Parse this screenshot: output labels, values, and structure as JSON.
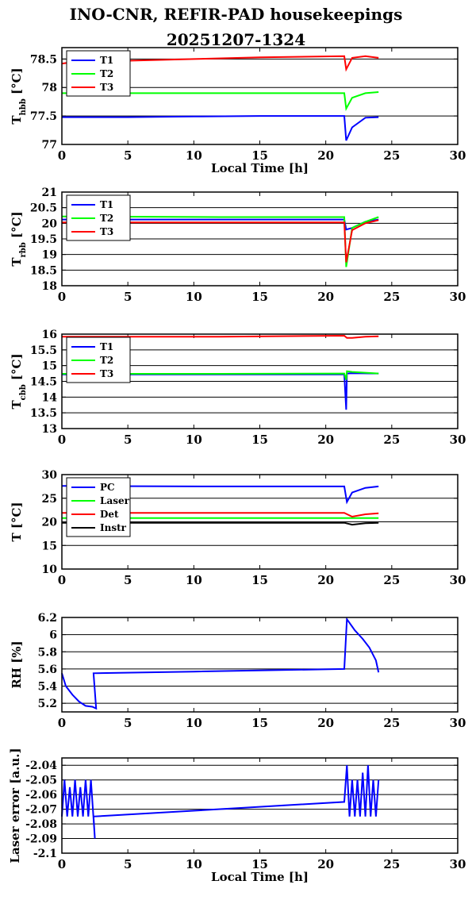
{
  "title_line1": "INO-CNR, REFIR-PAD housekeepings",
  "title_line2": "20251207-1324",
  "chart_data": [
    {
      "type": "line",
      "ylabel": "T_hbb [°C]",
      "xlabel": "Local Time [h]",
      "xlim": [
        0,
        30
      ],
      "ylim": [
        77,
        78.7
      ],
      "xticks": [
        0,
        5,
        10,
        15,
        20,
        25,
        30
      ],
      "yticks": [
        77,
        77.5,
        78,
        78.5
      ],
      "ytick_labels": [
        "77",
        "77.5",
        "78",
        "78.5"
      ],
      "grid": "y",
      "legend": "top-left",
      "series": [
        {
          "name": "T1",
          "color": "#0000ff",
          "x": [
            0,
            1,
            2,
            5,
            10,
            15,
            21.4,
            21.55,
            22,
            23,
            24
          ],
          "y": [
            77.48,
            77.48,
            77.48,
            77.48,
            77.49,
            77.5,
            77.5,
            77.07,
            77.3,
            77.47,
            77.48
          ]
        },
        {
          "name": "T2",
          "color": "#00ff00",
          "x": [
            0,
            1,
            5,
            10,
            15,
            21.4,
            21.55,
            22,
            23,
            24
          ],
          "y": [
            77.9,
            77.9,
            77.9,
            77.9,
            77.9,
            77.9,
            77.63,
            77.82,
            77.9,
            77.92
          ]
        },
        {
          "name": "T3",
          "color": "#ff0000",
          "x": [
            0,
            1,
            5,
            10,
            15,
            21.4,
            21.55,
            22,
            23,
            24
          ],
          "y": [
            78.42,
            78.45,
            78.47,
            78.5,
            78.53,
            78.55,
            78.32,
            78.52,
            78.55,
            78.52
          ]
        }
      ]
    },
    {
      "type": "line",
      "ylabel": "T_rbb [°C]",
      "xlabel": "",
      "xlim": [
        0,
        30
      ],
      "ylim": [
        18,
        21
      ],
      "xticks": [
        0,
        5,
        10,
        15,
        20,
        25,
        30
      ],
      "yticks": [
        18,
        18.5,
        19,
        19.5,
        20,
        20.5,
        21
      ],
      "ytick_labels": [
        "18",
        "18.5",
        "19",
        "19.5",
        "20",
        "20.5",
        "21"
      ],
      "grid": "y",
      "legend": "top-left",
      "series": [
        {
          "name": "T1",
          "color": "#0000ff",
          "x": [
            0,
            12,
            21.4,
            21.55,
            22,
            23,
            24
          ],
          "y": [
            20.12,
            20.12,
            20.12,
            19.8,
            19.85,
            20.05,
            20.12
          ]
        },
        {
          "name": "T2",
          "color": "#00ff00",
          "x": [
            0,
            12,
            21.4,
            21.55,
            22,
            23,
            24
          ],
          "y": [
            20.22,
            20.2,
            20.2,
            18.6,
            19.85,
            20.05,
            20.2
          ]
        },
        {
          "name": "T3",
          "color": "#ff0000",
          "x": [
            0,
            12,
            21.4,
            21.55,
            22,
            23,
            24
          ],
          "y": [
            20.03,
            20.03,
            20.03,
            18.75,
            19.78,
            20.0,
            20.1
          ]
        }
      ]
    },
    {
      "type": "line",
      "ylabel": "T_cbb [°C]",
      "xlabel": "",
      "xlim": [
        0,
        30
      ],
      "ylim": [
        13,
        16
      ],
      "xticks": [
        0,
        5,
        10,
        15,
        20,
        25,
        30
      ],
      "yticks": [
        13,
        13.5,
        14,
        14.5,
        15,
        15.5,
        16
      ],
      "ytick_labels": [
        "13",
        "13.5",
        "14",
        "14.5",
        "15",
        "15.5",
        "16"
      ],
      "grid": "y",
      "legend": "top-left",
      "series": [
        {
          "name": "T1",
          "color": "#0000ff",
          "x": [
            0,
            12,
            21.4,
            21.55,
            21.6,
            22,
            24
          ],
          "y": [
            14.72,
            14.72,
            14.72,
            13.6,
            14.75,
            14.76,
            14.75
          ]
        },
        {
          "name": "T2",
          "color": "#00ff00",
          "x": [
            0,
            12,
            21.4,
            21.55,
            21.6,
            22,
            24
          ],
          "y": [
            14.74,
            14.74,
            14.75,
            14.55,
            14.82,
            14.8,
            14.75
          ]
        },
        {
          "name": "T3",
          "color": "#ff0000",
          "x": [
            0,
            12,
            21.4,
            21.6,
            22,
            23,
            24
          ],
          "y": [
            15.92,
            15.92,
            15.95,
            15.88,
            15.88,
            15.92,
            15.93
          ]
        }
      ]
    },
    {
      "type": "line",
      "ylabel": "T [°C]",
      "xlabel": "",
      "xlim": [
        0,
        30
      ],
      "ylim": [
        10,
        30
      ],
      "xticks": [
        0,
        5,
        10,
        15,
        20,
        25,
        30
      ],
      "yticks": [
        10,
        15,
        20,
        25,
        30
      ],
      "ytick_labels": [
        "10",
        "15",
        "20",
        "25",
        "30"
      ],
      "grid": "y",
      "legend": "top-left",
      "series": [
        {
          "name": "PC",
          "color": "#0000ff",
          "x": [
            0,
            12,
            21.4,
            21.6,
            22,
            23,
            24
          ],
          "y": [
            27.6,
            27.5,
            27.5,
            24.2,
            26.2,
            27.2,
            27.5
          ]
        },
        {
          "name": "Laser",
          "color": "#00ff00",
          "x": [
            0,
            12,
            21.4,
            22,
            24
          ],
          "y": [
            20.8,
            20.8,
            20.8,
            20.8,
            20.8
          ]
        },
        {
          "name": "Det",
          "color": "#ff0000",
          "x": [
            0,
            12,
            21.4,
            22,
            23,
            24
          ],
          "y": [
            21.9,
            21.9,
            21.9,
            21.1,
            21.6,
            21.8
          ]
        },
        {
          "name": "Instr",
          "color": "#000000",
          "x": [
            0,
            12,
            21.4,
            22,
            23,
            24
          ],
          "y": [
            19.8,
            19.8,
            19.8,
            19.4,
            19.7,
            19.8
          ]
        }
      ]
    },
    {
      "type": "line",
      "ylabel": "RH [%]",
      "xlabel": "",
      "xlim": [
        0,
        30
      ],
      "ylim": [
        5.1,
        6.2
      ],
      "xticks": [
        0,
        5,
        10,
        15,
        20,
        25,
        30
      ],
      "yticks": [
        5.2,
        5.4,
        5.6,
        5.8,
        6,
        6.2
      ],
      "ytick_labels": [
        "5.2",
        "5.4",
        "5.6",
        "5.8",
        "6",
        "6.2"
      ],
      "grid": "y",
      "legend": "none",
      "series": [
        {
          "color": "#0000ff",
          "x": [
            0,
            0.3,
            0.8,
            1.3,
            1.8,
            2.3,
            2.6,
            2.4,
            10,
            21.4,
            21.6,
            22.2,
            22.8,
            23.3,
            23.8,
            24
          ],
          "y": [
            5.55,
            5.4,
            5.3,
            5.22,
            5.17,
            5.16,
            5.14,
            5.55,
            5.57,
            5.6,
            6.18,
            6.05,
            5.95,
            5.85,
            5.7,
            5.56
          ]
        }
      ]
    },
    {
      "type": "line",
      "ylabel": "Laser error [a.u.]",
      "xlabel": "Local Time [h]",
      "xlim": [
        0,
        30
      ],
      "ylim": [
        -2.1,
        -2.035
      ],
      "xticks": [
        0,
        5,
        10,
        15,
        20,
        25,
        30
      ],
      "yticks": [
        -2.1,
        -2.09,
        -2.08,
        -2.07,
        -2.06,
        -2.05,
        -2.04
      ],
      "ytick_labels": [
        "-2.1",
        "-2.09",
        "-2.08",
        "-2.07",
        "-2.06",
        "-2.05",
        "-2.04"
      ],
      "grid": "y",
      "legend": "none",
      "series": [
        {
          "color": "#0000ff",
          "x": [
            0,
            0.2,
            0.4,
            0.6,
            0.8,
            1.0,
            1.2,
            1.4,
            1.6,
            1.8,
            2.0,
            2.2,
            2.5,
            2.4,
            21.4,
            21.6,
            21.8,
            22.0,
            22.2,
            22.4,
            22.6,
            22.8,
            23.0,
            23.2,
            23.4,
            23.6,
            23.8,
            24
          ],
          "y": [
            -2.075,
            -2.05,
            -2.075,
            -2.055,
            -2.075,
            -2.05,
            -2.075,
            -2.055,
            -2.075,
            -2.05,
            -2.075,
            -2.05,
            -2.09,
            -2.075,
            -2.065,
            -2.04,
            -2.075,
            -2.05,
            -2.075,
            -2.05,
            -2.075,
            -2.045,
            -2.075,
            -2.04,
            -2.075,
            -2.05,
            -2.075,
            -2.05
          ]
        }
      ]
    }
  ]
}
